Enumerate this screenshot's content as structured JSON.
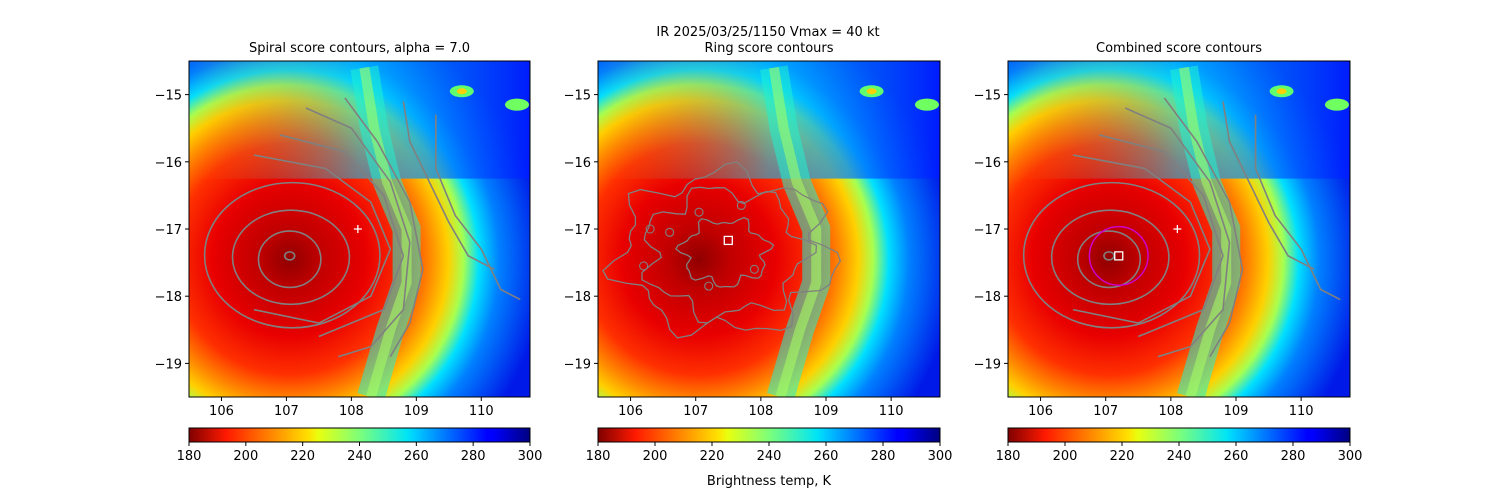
{
  "figure": {
    "suptitle_line1": "IR  2025/03/25/1150    Vmax = 40 kt",
    "colorbar_label": "Brightness temp, K"
  },
  "colors": {
    "contour": "#808080",
    "marker": "#ffffff",
    "ring_circle": "#cc00cc",
    "colormap": "jet_r"
  },
  "chart_data": [
    {
      "type": "heatmap",
      "title": "Spiral score contours, alpha =  7.0",
      "xlim": [
        105.5,
        110.75
      ],
      "ylim": [
        -19.5,
        -14.5
      ],
      "xticks": [
        106,
        107,
        108,
        109,
        110
      ],
      "yticks": [
        -15,
        -16,
        -17,
        -18,
        -19
      ],
      "xtick_labels": [
        "106",
        "107",
        "108",
        "109",
        "110"
      ],
      "ytick_labels": [
        "−15",
        "−16",
        "−17",
        "−18",
        "−19"
      ],
      "storm_center": {
        "lon": 107.05,
        "lat": -17.45
      },
      "best_track": {
        "lon": 108.1,
        "lat": -17.0
      },
      "contour_style": "spiral",
      "colorbar": {
        "min": 180,
        "max": 300,
        "ticks": [
          180,
          200,
          220,
          240,
          260,
          280,
          300
        ],
        "tick_labels": [
          "180",
          "200",
          "220",
          "240",
          "260",
          "280",
          "300"
        ]
      }
    },
    {
      "type": "heatmap",
      "title": "Ring score contours",
      "xlim": [
        105.5,
        110.75
      ],
      "ylim": [
        -19.5,
        -14.5
      ],
      "xticks": [
        106,
        107,
        108,
        109,
        110
      ],
      "yticks": [
        -15,
        -16,
        -17,
        -18,
        -19
      ],
      "xtick_labels": [
        "106",
        "107",
        "108",
        "109",
        "110"
      ],
      "ytick_labels": [
        "−15",
        "−16",
        "−17",
        "−18",
        "−19"
      ],
      "storm_center": {
        "lon": 107.05,
        "lat": -17.45
      },
      "ring_center": {
        "lon": 107.5,
        "lat": -17.17
      },
      "contour_style": "ring",
      "colorbar": {
        "min": 180,
        "max": 300,
        "ticks": [
          180,
          200,
          220,
          240,
          260,
          280,
          300
        ],
        "tick_labels": [
          "180",
          "200",
          "220",
          "240",
          "260",
          "280",
          "300"
        ]
      }
    },
    {
      "type": "heatmap",
      "title": "Combined score contours",
      "xlim": [
        105.5,
        110.75
      ],
      "ylim": [
        -19.5,
        -14.5
      ],
      "xticks": [
        106,
        107,
        108,
        109,
        110
      ],
      "yticks": [
        -15,
        -16,
        -17,
        -18,
        -19
      ],
      "xtick_labels": [
        "106",
        "107",
        "108",
        "109",
        "110"
      ],
      "ytick_labels": [
        "−15",
        "−16",
        "−17",
        "−18",
        "−19"
      ],
      "storm_center": {
        "lon": 107.05,
        "lat": -17.45
      },
      "best_track": {
        "lon": 108.1,
        "lat": -17.0
      },
      "combined_center": {
        "lon": 107.2,
        "lat": -17.4
      },
      "circle_radius_deg": 0.45,
      "contour_style": "spiral",
      "colorbar": {
        "min": 180,
        "max": 300,
        "ticks": [
          180,
          200,
          220,
          240,
          260,
          280,
          300
        ],
        "tick_labels": [
          "180",
          "200",
          "220",
          "240",
          "260",
          "280",
          "300"
        ]
      }
    }
  ]
}
